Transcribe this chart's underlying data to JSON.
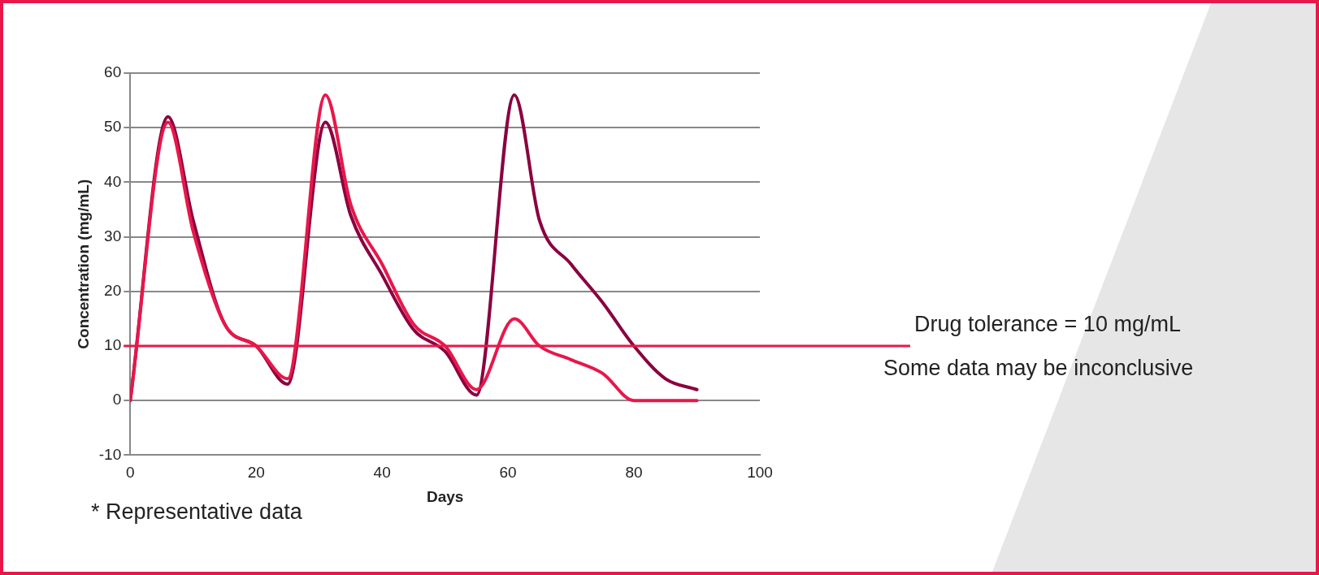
{
  "chart_data": {
    "type": "line",
    "xlabel": "Days",
    "ylabel": "Concentration (mg/mL)",
    "xlim": [
      0,
      100
    ],
    "xticks": [
      0,
      20,
      40,
      60,
      80,
      100
    ],
    "ylim": [
      -10,
      60
    ],
    "yticks": [
      -10,
      0,
      10,
      20,
      30,
      40,
      50,
      60
    ],
    "grid": "y",
    "legend": false,
    "marker": "none",
    "line_style": "solid",
    "series": [
      {
        "color": "#e8174a",
        "x": [
          0,
          6,
          10,
          15,
          20,
          25,
          31,
          35,
          40,
          45,
          50,
          55,
          61,
          65,
          70,
          75,
          80,
          85,
          90
        ],
        "values": [
          0,
          51,
          31,
          14,
          10,
          4,
          56,
          36,
          25,
          14,
          10,
          2,
          15,
          10,
          7.5,
          5,
          0,
          0,
          0
        ]
      },
      {
        "color": "#8b0040",
        "x": [
          0,
          6,
          10,
          15,
          20,
          25,
          31,
          35,
          40,
          45,
          50,
          55,
          61,
          65,
          70,
          75,
          80,
          85,
          90
        ],
        "values": [
          0,
          52,
          33,
          14,
          10,
          3,
          51,
          34,
          23,
          13,
          9,
          1,
          56,
          33,
          25,
          18,
          10,
          4,
          2
        ]
      }
    ],
    "ref_lines": [
      {
        "axis": "y",
        "value": 10,
        "label": "Drug tolerance = 10 mg/mL",
        "color": "#e8174a"
      }
    ],
    "annotations": [
      "Some data may be inconclusive",
      "* Representative data"
    ]
  }
}
